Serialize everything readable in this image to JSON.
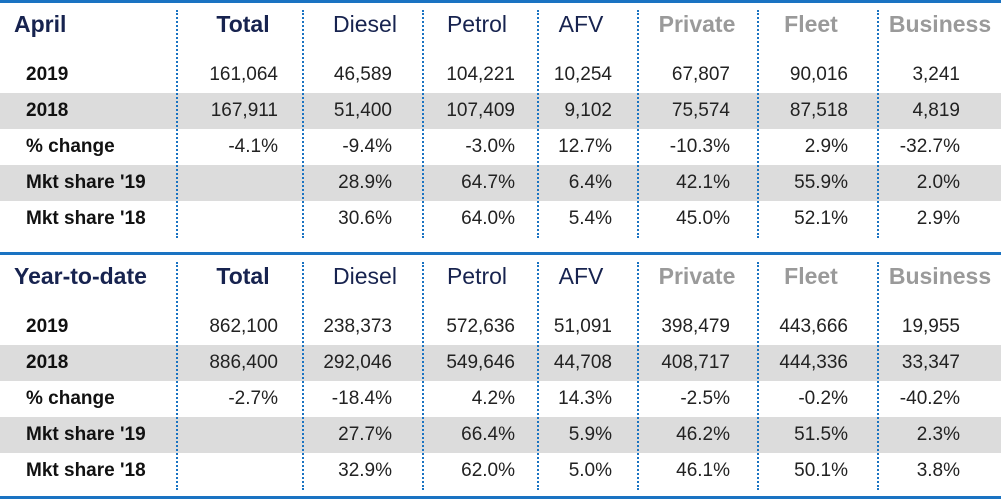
{
  "sections": [
    {
      "title": "April",
      "headers": [
        "Total",
        "Diesel",
        "Petrol",
        "AFV",
        "Private",
        "Fleet",
        "Business"
      ],
      "rows": [
        {
          "label": "2019",
          "values": [
            "161,064",
            "46,589",
            "104,221",
            "10,254",
            "67,807",
            "90,016",
            "3,241"
          ]
        },
        {
          "label": "2018",
          "values": [
            "167,911",
            "51,400",
            "107,409",
            "9,102",
            "75,574",
            "87,518",
            "4,819"
          ]
        },
        {
          "label": "% change",
          "values": [
            "-4.1%",
            "-9.4%",
            "-3.0%",
            "12.7%",
            "-10.3%",
            "2.9%",
            "-32.7%"
          ]
        },
        {
          "label": "Mkt share '19",
          "values": [
            "",
            "28.9%",
            "64.7%",
            "6.4%",
            "42.1%",
            "55.9%",
            "2.0%"
          ]
        },
        {
          "label": "Mkt share '18",
          "values": [
            "",
            "30.6%",
            "64.0%",
            "5.4%",
            "45.0%",
            "52.1%",
            "2.9%"
          ]
        }
      ]
    },
    {
      "title": "Year-to-date",
      "headers": [
        "Total",
        "Diesel",
        "Petrol",
        "AFV",
        "Private",
        "Fleet",
        "Business"
      ],
      "rows": [
        {
          "label": "2019",
          "values": [
            "862,100",
            "238,373",
            "572,636",
            "51,091",
            "398,479",
            "443,666",
            "19,955"
          ]
        },
        {
          "label": "2018",
          "values": [
            "886,400",
            "292,046",
            "549,646",
            "44,708",
            "408,717",
            "444,336",
            "33,347"
          ]
        },
        {
          "label": "% change",
          "values": [
            "-2.7%",
            "-18.4%",
            "4.2%",
            "14.3%",
            "-2.5%",
            "-0.2%",
            "-40.2%"
          ]
        },
        {
          "label": "Mkt share '19",
          "values": [
            "",
            "27.7%",
            "66.4%",
            "5.9%",
            "46.2%",
            "51.5%",
            "2.3%"
          ]
        },
        {
          "label": "Mkt share '18",
          "values": [
            "",
            "32.9%",
            "62.0%",
            "5.0%",
            "46.1%",
            "50.1%",
            "3.8%"
          ]
        }
      ]
    }
  ],
  "colors": {
    "accent_line": "#1a73c2",
    "header_dark": "#17234f",
    "header_gray": "#9a9a9a",
    "row_shade": "#dcdcdc"
  }
}
